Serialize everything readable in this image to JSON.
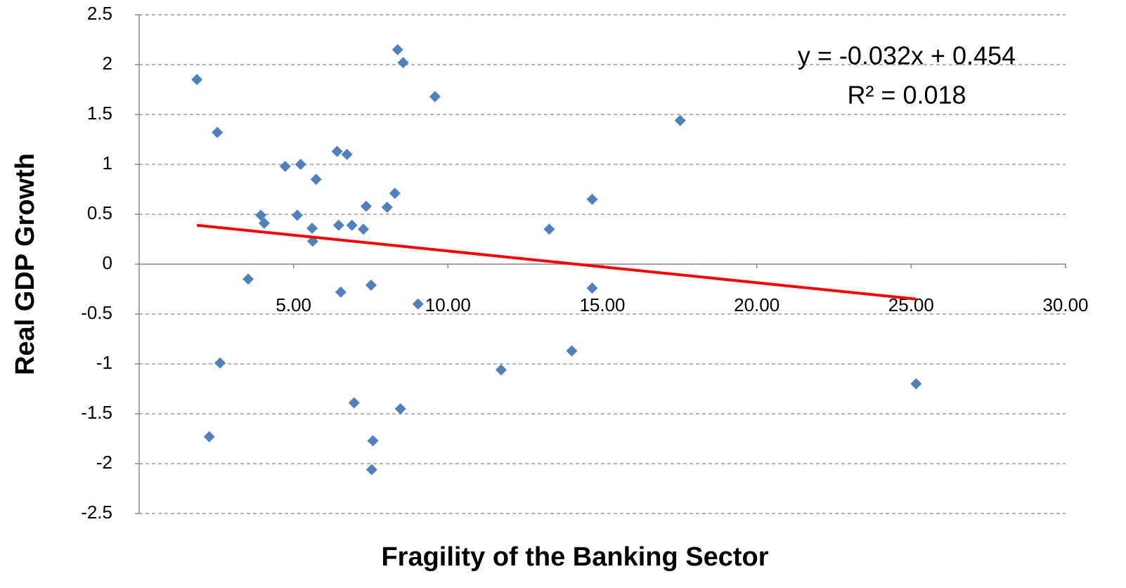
{
  "chart_data": {
    "type": "scatter",
    "xlabel": "Fragility of the Banking Sector",
    "ylabel": "Real GDP Growth",
    "annotations": [
      "y = -0.032x + 0.454",
      "R² = 0.018"
    ],
    "x": [
      1.87,
      2.53,
      2.27,
      2.62,
      3.53,
      3.94,
      4.05,
      4.73,
      5.12,
      5.23,
      5.6,
      5.62,
      5.73,
      6.41,
      6.46,
      6.53,
      6.73,
      6.89,
      6.96,
      7.26,
      7.35,
      7.51,
      7.53,
      7.57,
      8.03,
      8.28,
      8.37,
      8.46,
      8.55,
      9.03,
      9.58,
      11.72,
      13.28,
      14.01,
      14.67,
      14.67,
      17.52,
      25.16
    ],
    "values": [
      1.85,
      1.32,
      -1.73,
      -0.99,
      -0.15,
      0.49,
      0.41,
      0.98,
      0.49,
      1.0,
      0.36,
      0.23,
      0.85,
      1.13,
      0.39,
      -0.28,
      1.1,
      0.39,
      -1.39,
      0.35,
      0.58,
      -0.21,
      -2.06,
      -1.77,
      0.57,
      0.71,
      2.15,
      -1.45,
      2.02,
      -0.4,
      1.68,
      -1.06,
      0.35,
      -0.87,
      -0.24,
      0.65,
      1.44,
      -1.2
    ],
    "color": "#4f81bd",
    "trendline": {
      "x": [
        1.87,
        25.16
      ],
      "values": [
        0.39,
        -0.35
      ],
      "color": "#ff0000"
    },
    "xlim": [
      0,
      30
    ],
    "xticks": [
      {
        "value": 5,
        "label": "5.00"
      },
      {
        "value": 10,
        "label": "10.00"
      },
      {
        "value": 15,
        "label": "15.00"
      },
      {
        "value": 20,
        "label": "20.00"
      },
      {
        "value": 25,
        "label": "25.00"
      },
      {
        "value": 30,
        "label": "30.00"
      }
    ],
    "ylim": [
      -2.5,
      2.5
    ],
    "yticks": [
      -2.5,
      -2,
      -1.5,
      -1,
      -0.5,
      0,
      0.5,
      1,
      1.5,
      2,
      2.5
    ],
    "grid": true
  }
}
